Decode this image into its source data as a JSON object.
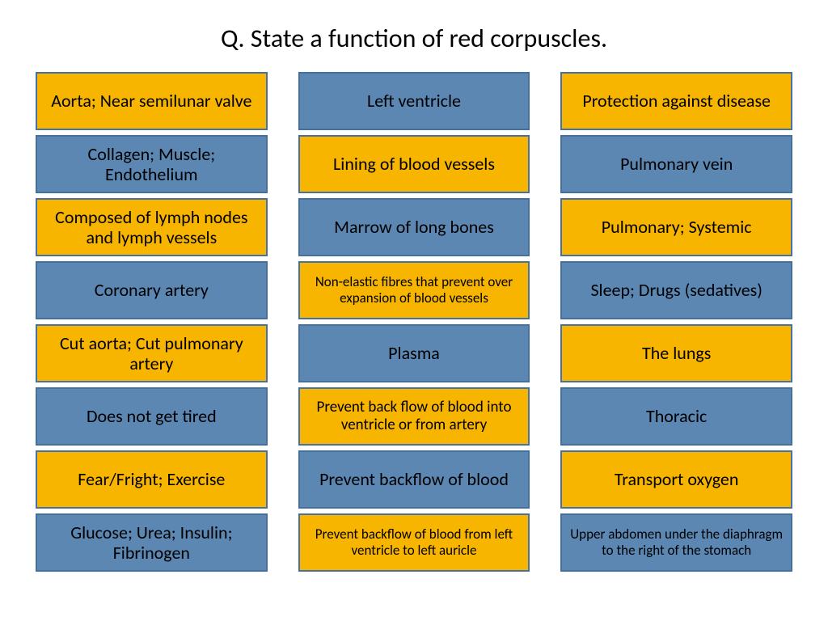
{
  "title": "Q. State a function of red corpuscles.",
  "colors": {
    "yellow_fill": "#f7b500",
    "yellow_border": "#4472a8",
    "blue_fill": "#5b87b2",
    "blue_border": "#41719c",
    "text": "#000000"
  },
  "columns": [
    [
      {
        "text": "Aorta; Near semilunar valve",
        "color": "yellow",
        "size": "lg"
      },
      {
        "text": "Collagen; Muscle; Endothelium",
        "color": "blue",
        "size": "lg"
      },
      {
        "text": "Composed of lymph nodes and lymph vessels",
        "color": "yellow",
        "size": "lg"
      },
      {
        "text": "Coronary artery",
        "color": "blue",
        "size": "lg"
      },
      {
        "text": "Cut aorta; Cut pulmonary artery",
        "color": "yellow",
        "size": "lg"
      },
      {
        "text": "Does not get tired",
        "color": "blue",
        "size": "lg"
      },
      {
        "text": "Fear/Fright; Exercise",
        "color": "yellow",
        "size": "lg"
      },
      {
        "text": "Glucose; Urea; Insulin; Fibrinogen",
        "color": "blue",
        "size": "lg"
      }
    ],
    [
      {
        "text": "Left ventricle",
        "color": "blue",
        "size": "lg"
      },
      {
        "text": "Lining of blood vessels",
        "color": "yellow",
        "size": "lg"
      },
      {
        "text": "Marrow of long bones",
        "color": "blue",
        "size": "lg"
      },
      {
        "text": "Non-elastic fibres that prevent over expansion of blood vessels",
        "color": "yellow",
        "size": "sm"
      },
      {
        "text": "Plasma",
        "color": "blue",
        "size": "lg"
      },
      {
        "text": "Prevent back flow of blood into ventricle or from artery",
        "color": "yellow",
        "size": "md"
      },
      {
        "text": "Prevent backflow of blood",
        "color": "blue",
        "size": "lg"
      },
      {
        "text": "Prevent backflow of blood from left ventricle to left auricle",
        "color": "yellow",
        "size": "sm"
      }
    ],
    [
      {
        "text": "Protection against disease",
        "color": "yellow",
        "size": "lg"
      },
      {
        "text": "Pulmonary vein",
        "color": "blue",
        "size": "lg"
      },
      {
        "text": "Pulmonary; Systemic",
        "color": "yellow",
        "size": "lg"
      },
      {
        "text": "Sleep; Drugs (sedatives)",
        "color": "blue",
        "size": "lg"
      },
      {
        "text": "The lungs",
        "color": "yellow",
        "size": "lg"
      },
      {
        "text": "Thoracic",
        "color": "blue",
        "size": "lg"
      },
      {
        "text": "Transport oxygen",
        "color": "yellow",
        "size": "lg"
      },
      {
        "text": "Upper abdomen under the diaphragm to the right of the stomach",
        "color": "blue",
        "size": "sm"
      }
    ]
  ]
}
